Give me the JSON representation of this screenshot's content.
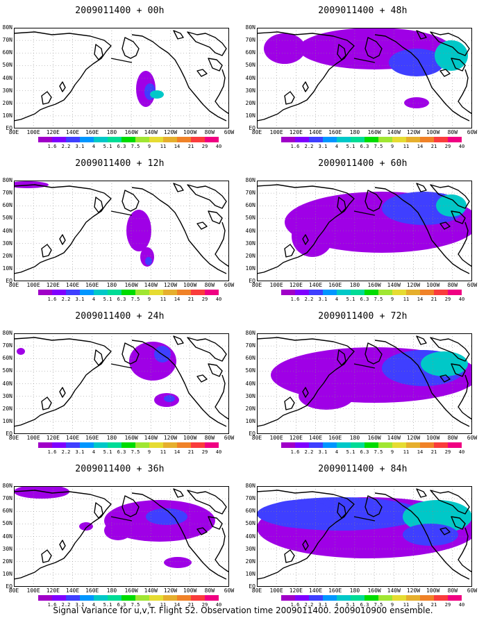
{
  "panels": [
    {
      "title": "2009011400 + 00h",
      "map": "shield"
    },
    {
      "title": "2009011400 + 12h",
      "map": "shield"
    },
    {
      "title": "2009011400 + 24h",
      "map": "shield"
    },
    {
      "title": "2009011400 + 36h",
      "map": "shield"
    },
    {
      "title": "2009011400 + 48h",
      "map": "shield"
    },
    {
      "title": "2009011400 + 60h",
      "map": "shield"
    },
    {
      "title": "2009011400 + 72h",
      "map": "shield"
    },
    {
      "title": "2009011400 + 84h",
      "map": "shield"
    }
  ],
  "lat_labels": [
    "80N",
    "70N",
    "60N",
    "50N",
    "40N",
    "30N",
    "20N",
    "10N",
    "EQ"
  ],
  "lon_labels": [
    "80E",
    "100E",
    "120E",
    "140E",
    "160E",
    "180",
    "160W",
    "140W",
    "120W",
    "100W",
    "80W",
    "60W"
  ],
  "legend": {
    "labels": [
      "1.6",
      "2.2",
      "3.1",
      "4",
      "5.1",
      "6.3",
      "7.5",
      "9",
      "11",
      "14",
      "21",
      "29",
      "40"
    ],
    "colors": [
      "#a000c8",
      "#7f00ff",
      "#3f3fff",
      "#0096ff",
      "#00c8c8",
      "#00dc96",
      "#00dc00",
      "#a0e632",
      "#e6dc32",
      "#e6af2d",
      "#f08228",
      "#fa3c3c",
      "#f00082"
    ]
  },
  "colors": {
    "fill_light": "#9f00e6",
    "fill_mid": "#3f3fff",
    "fill_high": "#00c8c8",
    "coast": "#000000",
    "grid": "#888888"
  },
  "caption": "Signal Variance for u,v,T. Flight 52. Observation time 2009011400. 2009010900 ensemble."
}
